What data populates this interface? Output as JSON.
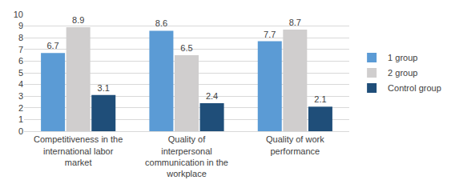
{
  "chart_data": {
    "type": "bar",
    "categories": [
      "Competitiveness in the international labor market",
      "Quality of interpersonal communication in the workplace",
      "Quality of work performance"
    ],
    "series": [
      {
        "name": "1 group",
        "color": "#5b9bd5",
        "values": [
          6.7,
          8.6,
          7.7
        ]
      },
      {
        "name": "2 group",
        "color": "#d0cece",
        "values": [
          8.9,
          6.5,
          8.7
        ]
      },
      {
        "name": "Control group",
        "color": "#1f4e79",
        "values": [
          3.1,
          2.4,
          2.1
        ]
      }
    ],
    "ylim": [
      0,
      10
    ],
    "yticks": [
      0,
      1,
      2,
      3,
      4,
      5,
      6,
      7,
      8,
      9,
      10
    ],
    "grid": true,
    "legend": "right",
    "data_labels": true
  }
}
